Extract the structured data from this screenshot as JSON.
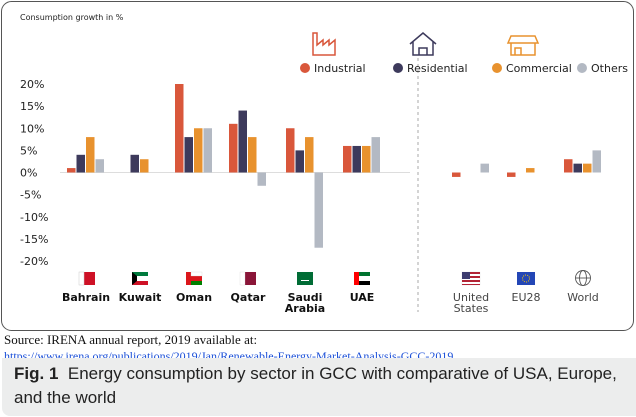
{
  "chart_data": {
    "type": "bar",
    "axis_label": "Consumption growth in %",
    "categories": [
      "Bahrain",
      "Kuwait",
      "Oman",
      "Qatar",
      "Saudi Arabia",
      "UAE",
      "United States",
      "EU28",
      "World"
    ],
    "series": [
      {
        "name": "Industrial",
        "color": "#d9573b",
        "values": [
          1,
          null,
          20,
          11,
          10,
          6,
          -1,
          -1,
          3
        ]
      },
      {
        "name": "Residential",
        "color": "#3d3a5c",
        "values": [
          4,
          4,
          8,
          14,
          5,
          6,
          null,
          null,
          2
        ]
      },
      {
        "name": "Commercial",
        "color": "#e8922e",
        "values": [
          8,
          3,
          10,
          8,
          8,
          6,
          null,
          1,
          2
        ]
      },
      {
        "name": "Others",
        "color": "#b3b9c3",
        "values": [
          3,
          null,
          10,
          -3,
          -17,
          8,
          2,
          null,
          5
        ]
      }
    ],
    "ylim": [
      -22,
      24
    ],
    "yticks": [
      {
        "value": 20,
        "label": "20%"
      },
      {
        "value": 15,
        "label": "15%"
      },
      {
        "value": 10,
        "label": "10%"
      },
      {
        "value": 5,
        "label": "5%"
      },
      {
        "value": 0,
        "label": "0%"
      },
      {
        "value": -5,
        "label": "-5%"
      },
      {
        "value": -10,
        "label": "-10%"
      },
      {
        "value": -15,
        "label": "-15%"
      },
      {
        "value": -20,
        "label": "-20%"
      }
    ],
    "source": "Source: IRENA annual report, 2019 available at:",
    "source_url": "https://www.irena.org/publications/2019/Jan/Renewable-Energy-Market-Analysis-GCC-2019",
    "figure_label": "Fig. 1",
    "caption": "Energy consumption by sector in GCC with comparative of USA, Europe, and the world"
  }
}
